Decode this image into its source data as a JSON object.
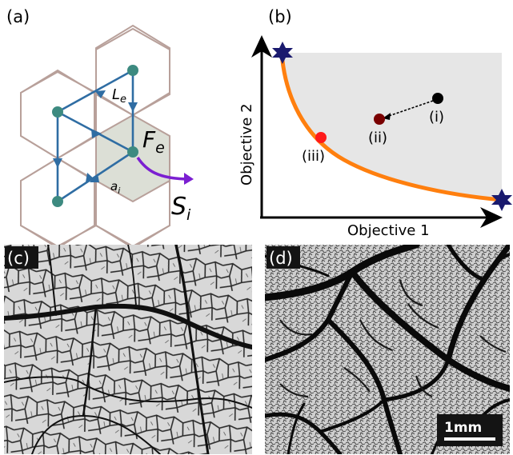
{
  "panels": {
    "a": {
      "label": "(a)",
      "edge_label": "L",
      "edge_label_sub": "e",
      "flux_label": "F",
      "flux_label_sub": "e",
      "area_label": "a",
      "area_label_sub": "i",
      "source_label": "S",
      "source_label_sub": "i"
    },
    "b": {
      "label": "(b)",
      "xlabel": "Objective 1",
      "ylabel": "Objective 2",
      "points": [
        "(i)",
        "(ii)",
        "(iii)"
      ],
      "colors": {
        "front": "#ff7f0e",
        "feasible": "#e6e6e6",
        "star": "#1a1a6e",
        "point_i": "#000000",
        "point_ii": "#7a0000",
        "point_iii": "#ff1a1a"
      }
    },
    "c": {
      "label": "(c)"
    },
    "d": {
      "label": "(d)",
      "scale_bar": "1mm"
    }
  },
  "colors": {
    "hex_edge": "#b8a09a",
    "hex_fill_center": "#dcdfd6",
    "network_edge": "#2f6da3",
    "node": "#3d8a80",
    "source_arrow": "#7b1fd1"
  }
}
